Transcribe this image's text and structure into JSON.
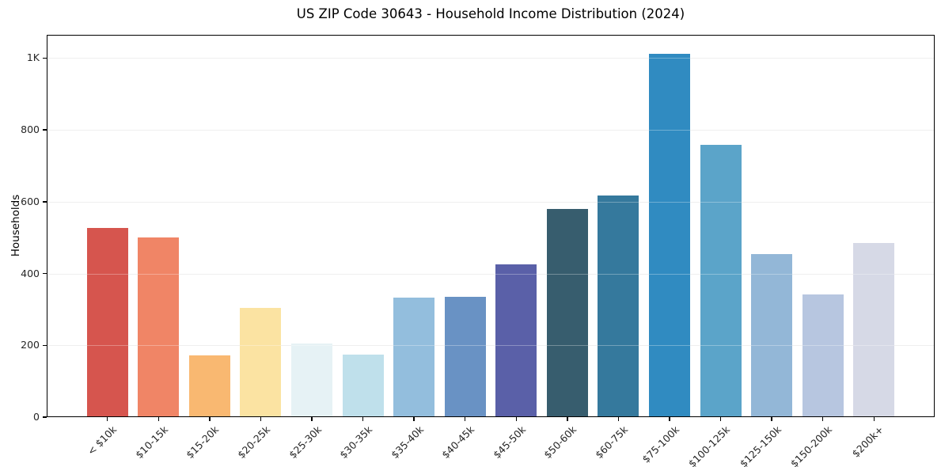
{
  "chart_data": {
    "type": "bar",
    "title": "US ZIP Code 30643 - Household Income Distribution (2024)",
    "xlabel": "",
    "ylabel": "Households",
    "categories": [
      "< $10k",
      "$10-15k",
      "$15-20k",
      "$20-25k",
      "$25-30k",
      "$30-35k",
      "$35-40k",
      "$40-45k",
      "$45-50k",
      "$50-60k",
      "$60-75k",
      "$75-100k",
      "$100-125k",
      "$125-150k",
      "$150-200k",
      "$200k+"
    ],
    "values": [
      527,
      501,
      172,
      305,
      206,
      174,
      333,
      336,
      426,
      581,
      617,
      1011,
      758,
      454,
      342,
      484
    ],
    "bar_colors": [
      "#d6554e",
      "#f08566",
      "#f9b871",
      "#fbe3a2",
      "#e6f2f5",
      "#bfe0eb",
      "#93bedd",
      "#6992c4",
      "#5a60a8",
      "#375d6e",
      "#35799d",
      "#308bc1",
      "#5ba4c9",
      "#93b7d7",
      "#b7c6e0",
      "#d6d9e6"
    ],
    "ylim": [
      0,
      1065
    ],
    "yticks": {
      "values": [
        0,
        200,
        400,
        600,
        800,
        1000
      ],
      "labels": [
        "0",
        "200",
        "400",
        "600",
        "800",
        "1K"
      ]
    },
    "grid": "horizontal",
    "legend": "none",
    "axis_color": "#000000",
    "grid_color": "#e8e8e8",
    "tick_label_color": "#262626"
  }
}
